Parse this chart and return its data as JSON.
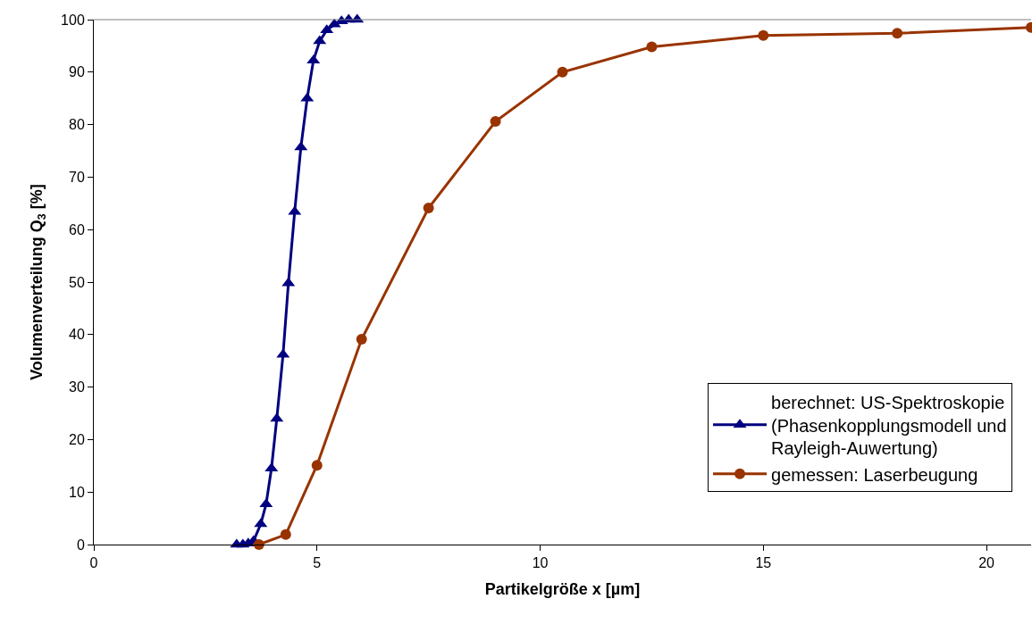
{
  "chart_data": {
    "type": "line",
    "xlabel": "Partikelgröße x [µm]",
    "ylabel": "Volumenverteilung Q$_{3}$ [%]",
    "xlim": [
      0,
      21
    ],
    "xticks": [
      0,
      5,
      10,
      15,
      20
    ],
    "ylim": [
      0,
      100
    ],
    "yticks": [
      0,
      10,
      20,
      30,
      40,
      50,
      60,
      70,
      80,
      90,
      100
    ],
    "legend": "bottom right",
    "series": [
      {
        "name": "berechnet: US-Spektroskopie (Phasenkopplungsmodell und Rayleigh-Auwertung)",
        "color": "#000080",
        "marker": "triangle",
        "x": [
          3.2,
          3.34,
          3.46,
          3.58,
          3.74,
          3.86,
          3.98,
          4.1,
          4.24,
          4.36,
          4.5,
          4.64,
          4.78,
          4.92,
          5.06,
          5.22,
          5.39,
          5.55,
          5.71,
          5.9
        ],
        "values": [
          0,
          0,
          0.2,
          0.7,
          3.9,
          7.7,
          14.5,
          24,
          36.2,
          49.8,
          63.4,
          75.7,
          85,
          92.2,
          95.9,
          98,
          99.1,
          99.7,
          100,
          100
        ]
      },
      {
        "name": "gemessen: Laserbeugung",
        "color": "#993300",
        "marker": "circle",
        "x": [
          3.7,
          4.3,
          5.0,
          6.0,
          7.5,
          9.0,
          10.5,
          12.5,
          15,
          18,
          21
        ],
        "values": [
          0,
          1.9,
          15.1,
          39.1,
          64.1,
          80.6,
          90,
          94.8,
          97,
          97.4,
          98.5
        ]
      }
    ]
  }
}
